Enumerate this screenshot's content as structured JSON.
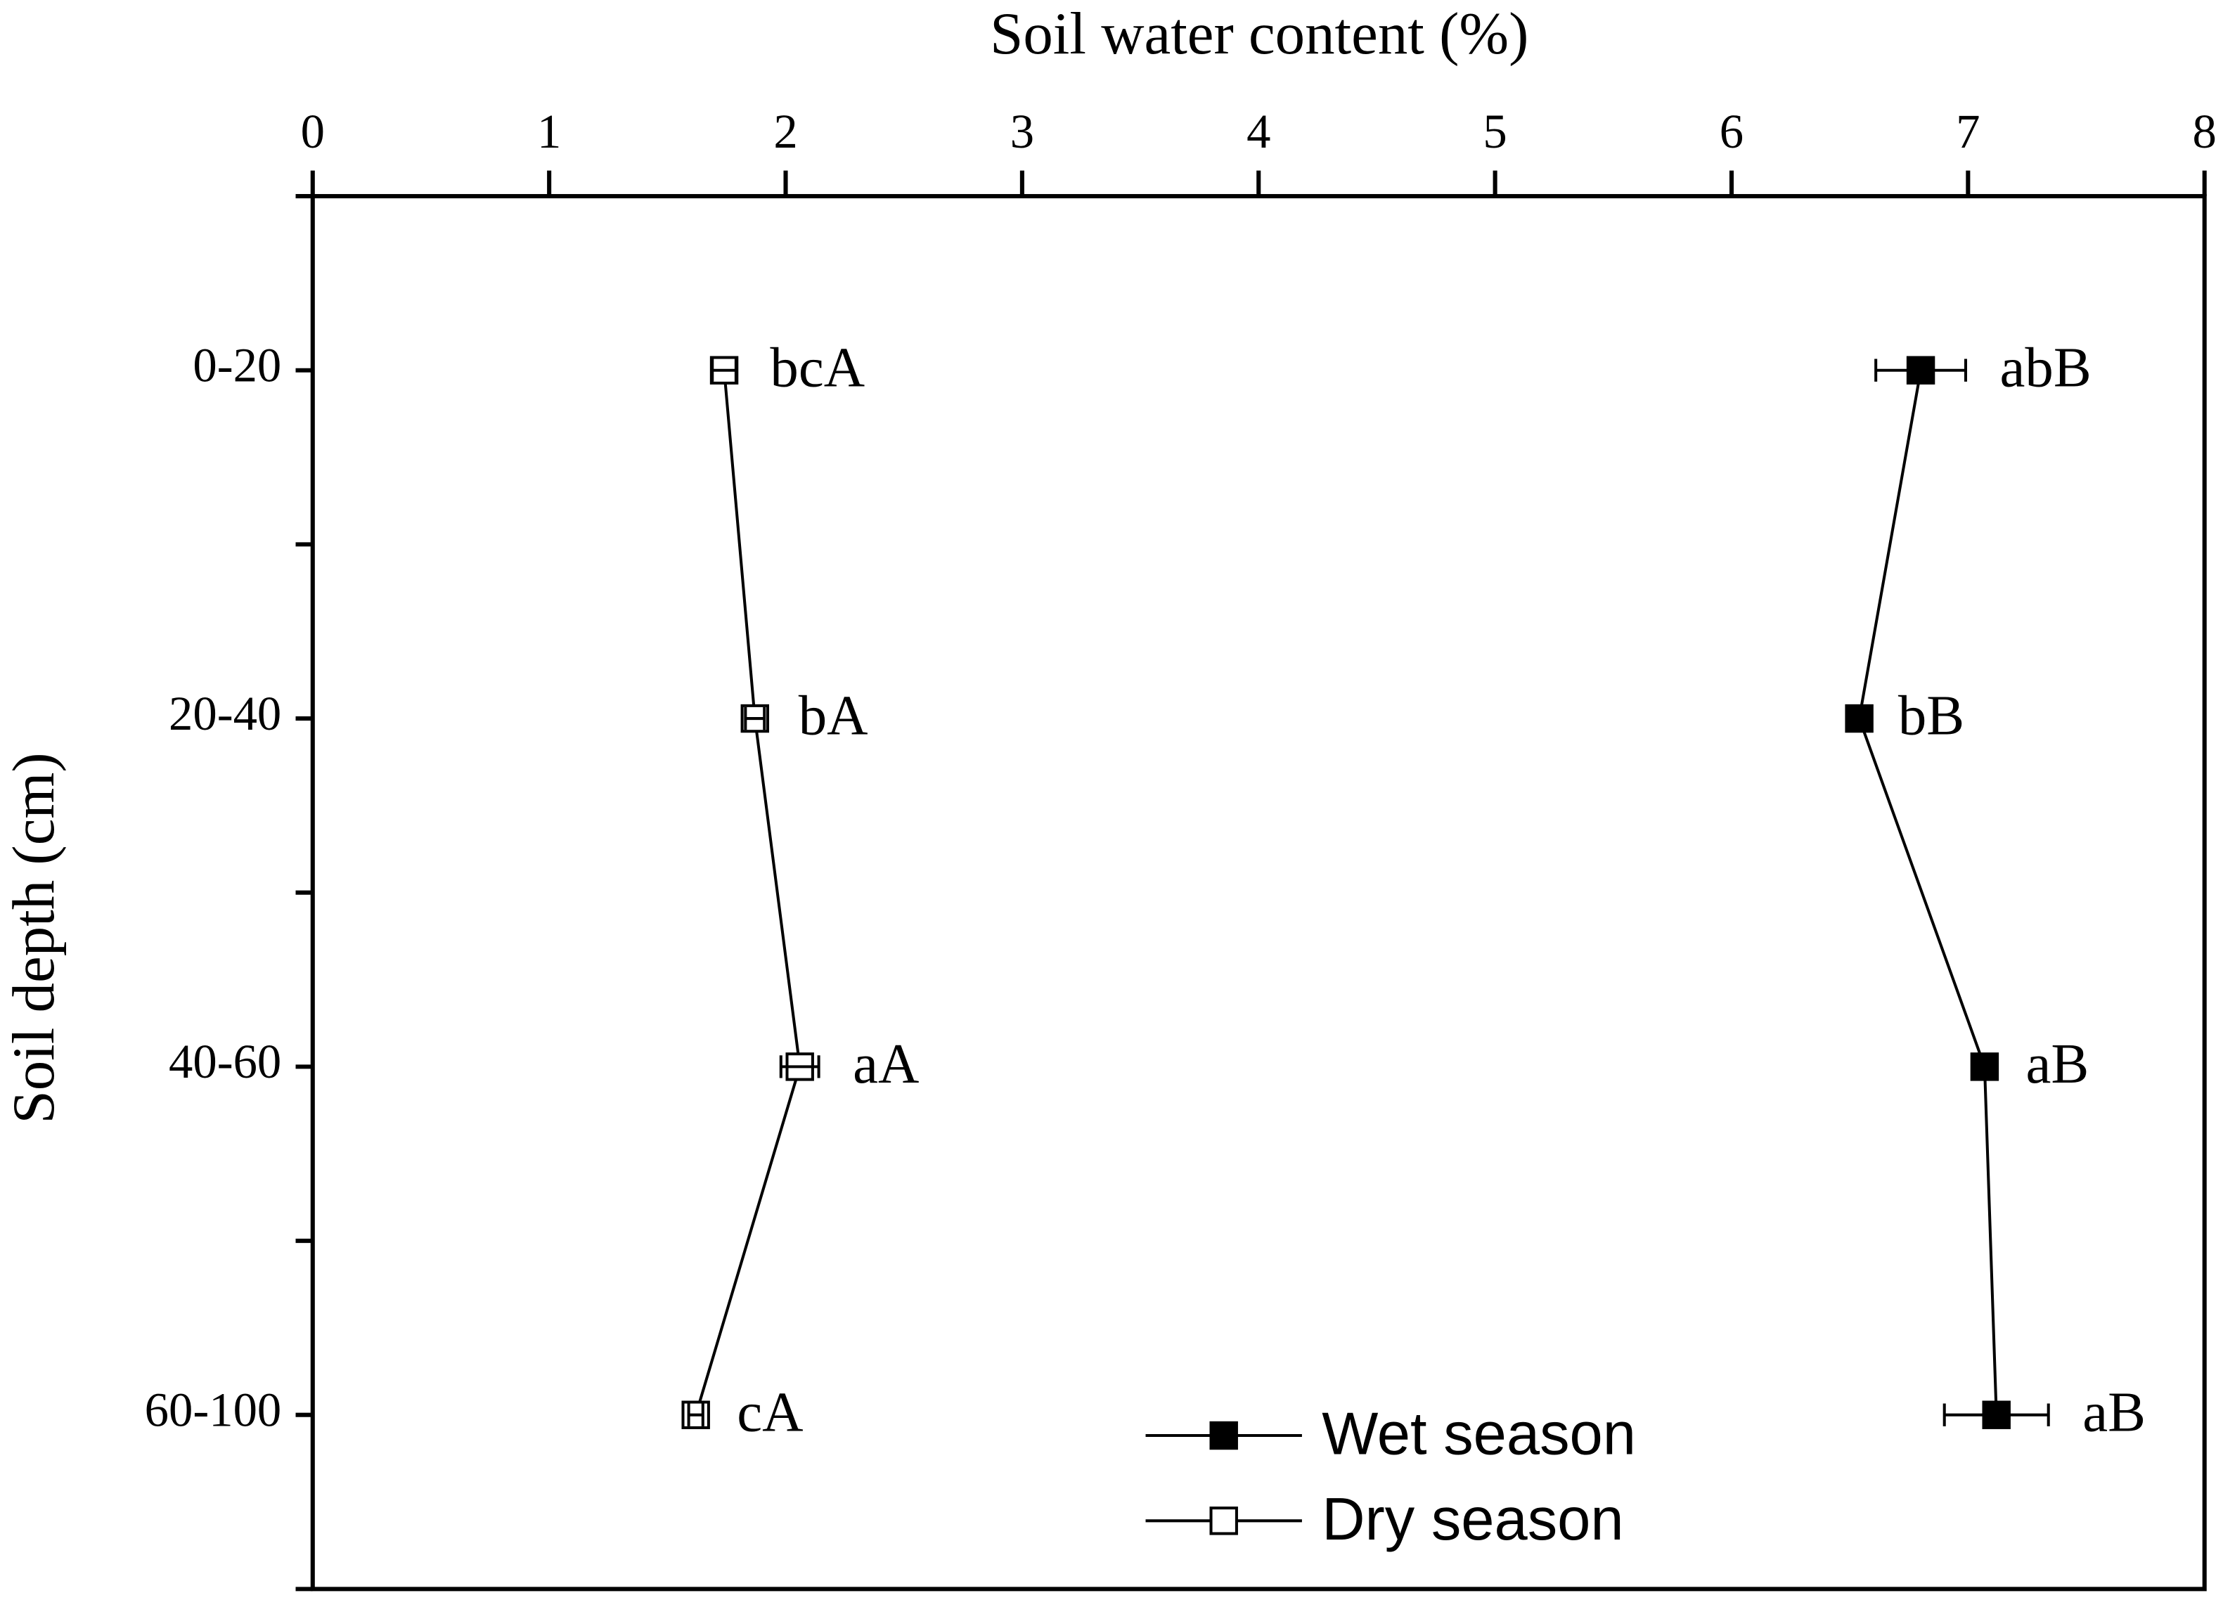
{
  "chart_data": {
    "type": "line",
    "title": "Soil water content (%)",
    "y_label": "Soil depth (cm)",
    "categories": [
      "0-20",
      "20-40",
      "40-60",
      "60-100"
    ],
    "xlim": [
      0,
      8
    ],
    "xticks": [
      0,
      1,
      2,
      3,
      4,
      5,
      6,
      7,
      8
    ],
    "legend": "bottom",
    "series": [
      {
        "name": "Wet season",
        "color": "#000000",
        "marker": "filled-square",
        "values": [
          6.8,
          6.54,
          7.07,
          7.12
        ],
        "errors": [
          0.19,
          0.02,
          0.03,
          0.22
        ],
        "labels": [
          "abB",
          "bB",
          "aB",
          "aB"
        ]
      },
      {
        "name": "Dry season",
        "color": "#000000",
        "marker": "open-square",
        "values": [
          1.74,
          1.87,
          2.06,
          1.62
        ],
        "errors": [
          0.05,
          0.04,
          0.08,
          0.03
        ],
        "labels": [
          "bcA",
          "bA",
          "aA",
          "cA"
        ]
      }
    ]
  }
}
